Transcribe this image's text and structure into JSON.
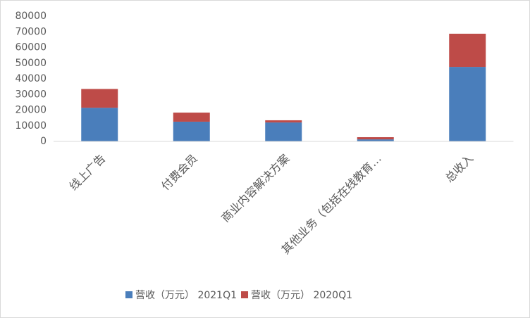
{
  "chart_data": {
    "type": "stacked_bar",
    "categories": [
      "线上广告",
      "付费会员",
      "商业内容解决方案",
      "其他业务（包括在线教育…",
      "总收入"
    ],
    "series": [
      {
        "name": "营收（万元） 2021Q1",
        "color": "#4a7ebb",
        "values": [
          21500,
          12600,
          12100,
          1300,
          47600
        ]
      },
      {
        "name": "营收（万元） 2020Q1",
        "color": "#be4b48",
        "values": [
          12000,
          5800,
          1400,
          1400,
          21200
        ]
      }
    ],
    "ylim": [
      0,
      80000
    ],
    "yticks": [
      0,
      10000,
      20000,
      30000,
      40000,
      50000,
      60000,
      70000,
      80000
    ]
  }
}
